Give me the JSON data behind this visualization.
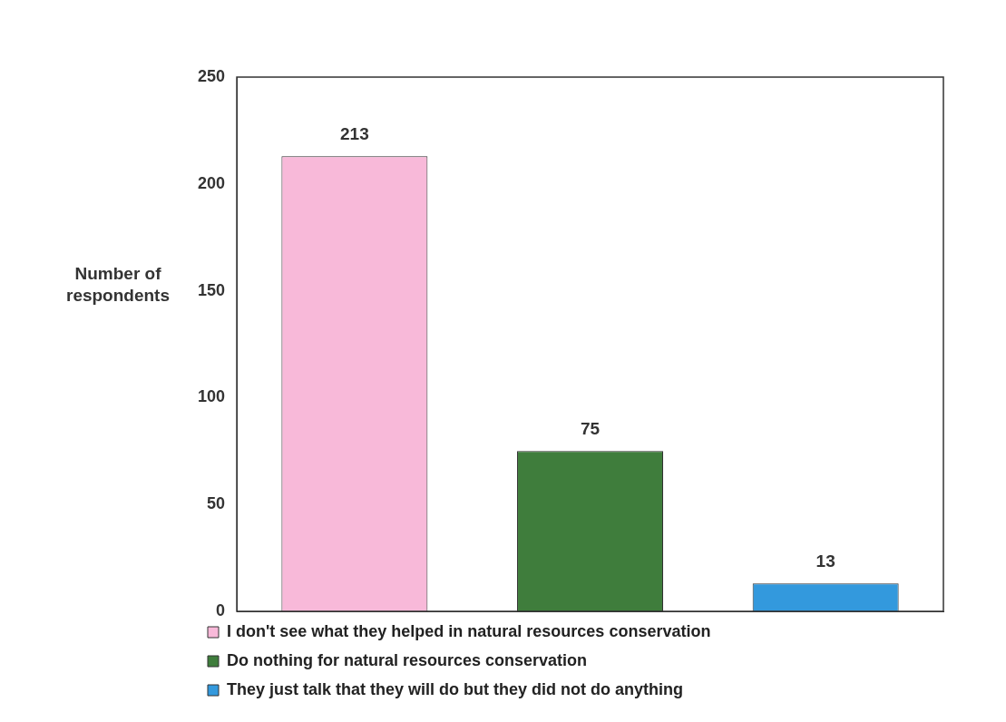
{
  "chart_data": {
    "type": "bar",
    "ylabel": "Number of respondents",
    "categories": [
      null,
      null,
      null
    ],
    "series": [
      {
        "name": "I don't see what they helped in natural resources conservation",
        "color": "#f8b9d9",
        "values": [
          213,
          null,
          null
        ]
      },
      {
        "name": "Do nothing for natural resources conservation",
        "color": "#3f7d3c",
        "values": [
          null,
          75,
          null
        ]
      },
      {
        "name": "They just talk that they will do but they did not do anything",
        "color": "#3399dd",
        "values": [
          null,
          null,
          13
        ]
      }
    ],
    "ylim": [
      0,
      250
    ],
    "yticks": [
      0,
      50,
      100,
      150,
      200,
      250
    ],
    "grid": false,
    "legend": "bottom",
    "data_labels": true
  }
}
